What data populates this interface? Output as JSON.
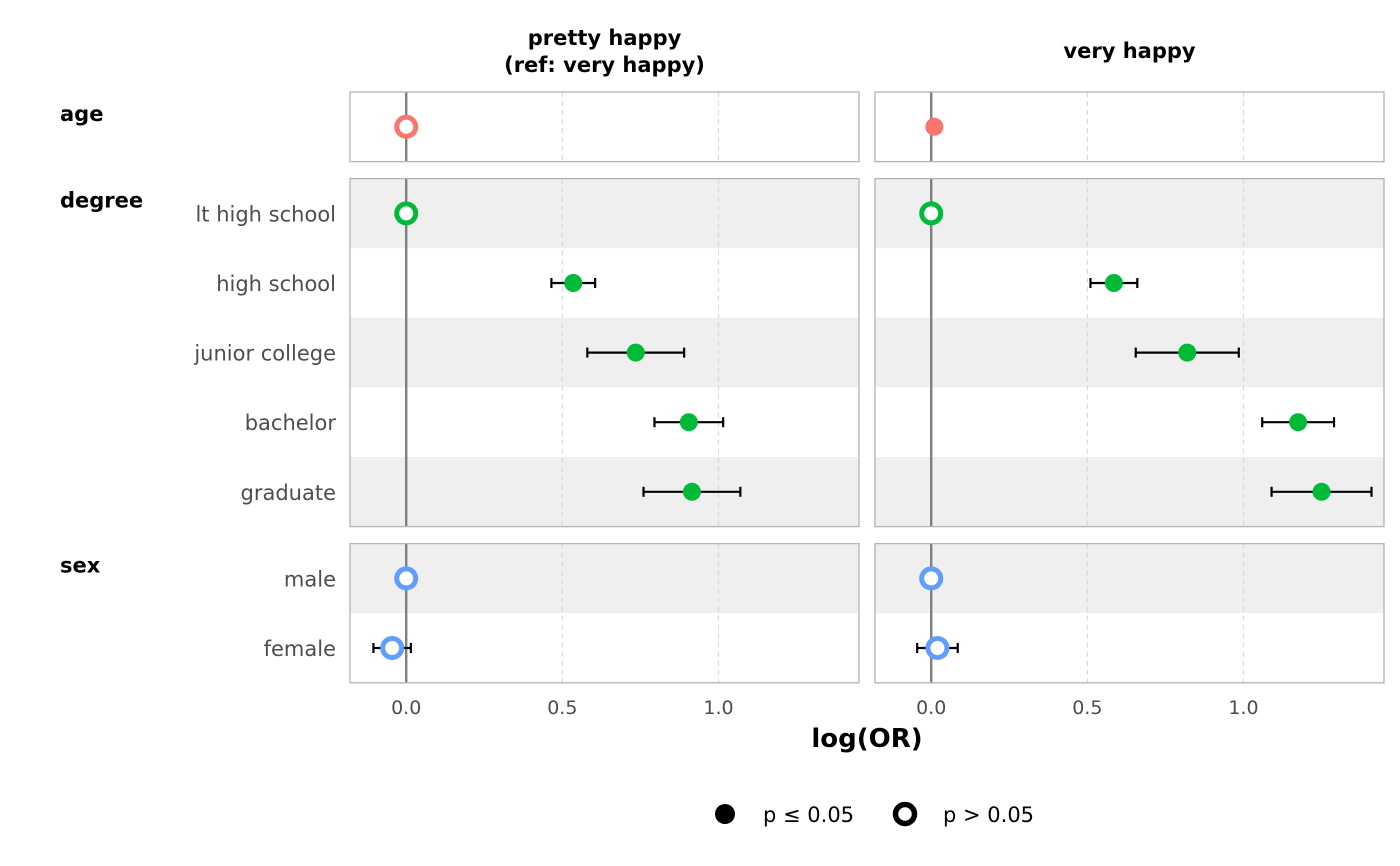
{
  "chart_data": {
    "type": "scatter",
    "xlabel": "log(OR)",
    "xlim": [
      -0.18,
      1.45
    ],
    "xticks": [
      0.0,
      0.5,
      1.0
    ],
    "xtick_labels": [
      "0.0",
      "0.5",
      "1.0"
    ],
    "facets": [
      {
        "title": "pretty happy",
        "subtitle": "(ref: very happy)"
      },
      {
        "title": "very happy",
        "subtitle": ""
      }
    ],
    "groups": [
      {
        "name": "age",
        "color": "#F8766D",
        "rows": [
          {
            "label": "",
            "values": [
              {
                "est": 0.0,
                "lo": null,
                "hi": null,
                "significant": false
              },
              {
                "est": 0.01,
                "lo": null,
                "hi": null,
                "significant": true
              }
            ]
          }
        ]
      },
      {
        "name": "degree",
        "color": "#00BA38",
        "rows": [
          {
            "label": "lt high school",
            "values": [
              {
                "est": 0.0,
                "lo": null,
                "hi": null,
                "significant": false
              },
              {
                "est": 0.0,
                "lo": null,
                "hi": null,
                "significant": false
              }
            ]
          },
          {
            "label": "high school",
            "values": [
              {
                "est": 0.535,
                "lo": 0.465,
                "hi": 0.605,
                "significant": true
              },
              {
                "est": 0.585,
                "lo": 0.51,
                "hi": 0.66,
                "significant": true
              }
            ]
          },
          {
            "label": "junior college",
            "values": [
              {
                "est": 0.735,
                "lo": 0.58,
                "hi": 0.89,
                "significant": true
              },
              {
                "est": 0.82,
                "lo": 0.655,
                "hi": 0.985,
                "significant": true
              }
            ]
          },
          {
            "label": "bachelor",
            "values": [
              {
                "est": 0.905,
                "lo": 0.795,
                "hi": 1.015,
                "significant": true
              },
              {
                "est": 1.175,
                "lo": 1.06,
                "hi": 1.29,
                "significant": true
              }
            ]
          },
          {
            "label": "graduate",
            "values": [
              {
                "est": 0.915,
                "lo": 0.76,
                "hi": 1.07,
                "significant": true
              },
              {
                "est": 1.25,
                "lo": 1.09,
                "hi": 1.41,
                "significant": true
              }
            ]
          }
        ]
      },
      {
        "name": "sex",
        "color": "#619CFF",
        "rows": [
          {
            "label": "male",
            "values": [
              {
                "est": 0.0,
                "lo": null,
                "hi": null,
                "significant": false
              },
              {
                "est": 0.0,
                "lo": null,
                "hi": null,
                "significant": false
              }
            ]
          },
          {
            "label": "female",
            "values": [
              {
                "est": -0.045,
                "lo": -0.105,
                "hi": 0.015,
                "significant": false
              },
              {
                "est": 0.02,
                "lo": -0.045,
                "hi": 0.085,
                "significant": false
              }
            ]
          }
        ]
      }
    ],
    "legend": {
      "position": "bottom",
      "items": [
        {
          "label": "p ≤ 0.05",
          "shape": "filled"
        },
        {
          "label": "p > 0.05",
          "shape": "hollow"
        }
      ]
    },
    "reference_line": 0,
    "grid": true
  }
}
